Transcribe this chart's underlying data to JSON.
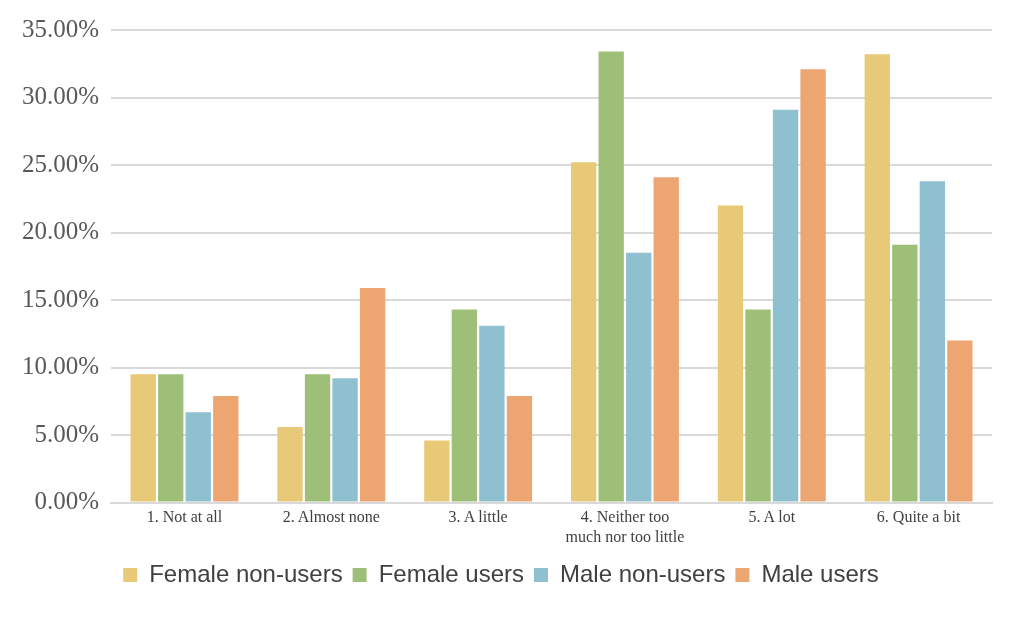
{
  "chart_data": {
    "type": "bar",
    "categories": [
      "1. Not at all",
      "2. Almost none",
      "3. A little",
      "4. Neither too much nor too little",
      "5. A lot",
      "6. Quite a bit"
    ],
    "series": [
      {
        "name": "Female non-users",
        "color": "#e8c977",
        "values": [
          9.5,
          5.6,
          4.6,
          25.2,
          22.0,
          33.2
        ]
      },
      {
        "name": "Female users",
        "color": "#9dbf77",
        "values": [
          9.5,
          9.5,
          14.3,
          33.4,
          14.3,
          19.1
        ]
      },
      {
        "name": "Male non-users",
        "color": "#8fc0cf",
        "values": [
          6.7,
          9.2,
          13.1,
          18.5,
          29.1,
          23.8
        ]
      },
      {
        "name": "Male users",
        "color": "#eda672",
        "values": [
          7.9,
          15.9,
          7.9,
          24.1,
          32.1,
          12.0
        ]
      }
    ],
    "ylim": [
      0,
      35
    ],
    "yticks": [
      {
        "value": 0,
        "label": "0.00%"
      },
      {
        "value": 5,
        "label": "5.00%"
      },
      {
        "value": 10,
        "label": "10.00%"
      },
      {
        "value": 15,
        "label": "15.00%"
      },
      {
        "value": 20,
        "label": "20.00%"
      },
      {
        "value": 25,
        "label": "25.00%"
      },
      {
        "value": 30,
        "label": "30.00%"
      },
      {
        "value": 35,
        "label": "35.00%"
      }
    ],
    "grid": "y",
    "legend": "bottom"
  }
}
